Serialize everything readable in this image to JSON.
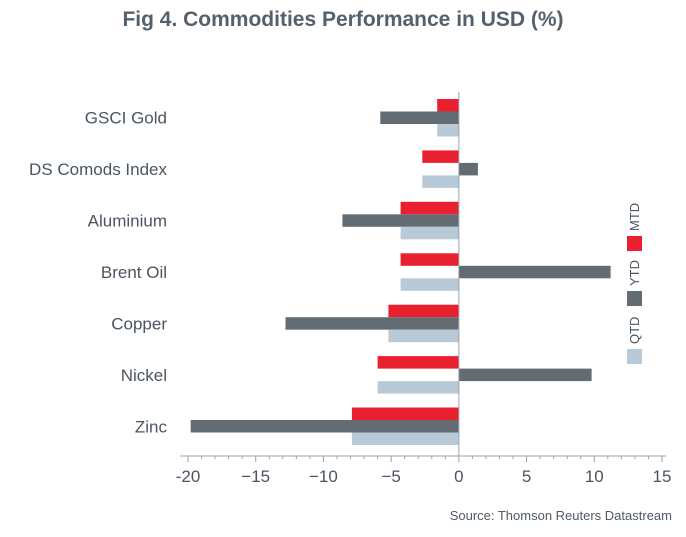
{
  "chart_data": {
    "type": "bar",
    "orientation": "horizontal",
    "title": "Fig 4. Commodities Performance in USD (%)",
    "source": "Source: Thomson Reuters Datastream",
    "categories": [
      "GSCI Gold",
      "DS Comods Index",
      "Aluminium",
      "Brent Oil",
      "Copper",
      "Nickel",
      "Zinc"
    ],
    "series": [
      {
        "name": "MTD",
        "color": "#e8202f",
        "values": [
          -1.6,
          -2.7,
          -4.3,
          -4.3,
          -5.2,
          -6.0,
          -7.9
        ]
      },
      {
        "name": "YTD",
        "color": "#646c73",
        "values": [
          -5.8,
          1.4,
          -8.6,
          11.2,
          -12.8,
          9.8,
          -19.8
        ]
      },
      {
        "name": "QTD",
        "color": "#b8cad8",
        "values": [
          -1.6,
          -2.7,
          -4.3,
          -4.3,
          -5.2,
          -6.0,
          -7.9
        ]
      }
    ],
    "xlim": [
      -20,
      15
    ],
    "xticks": [
      -20,
      -15,
      -10,
      -5,
      0,
      5,
      10,
      15
    ],
    "xtick_labels": [
      "-20",
      "−15",
      "−10",
      "−5",
      "0",
      "5",
      "10",
      "15"
    ],
    "legend_position": "right",
    "grid": false
  }
}
